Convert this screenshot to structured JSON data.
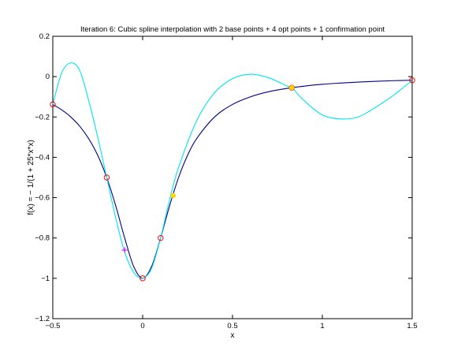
{
  "chart_data": {
    "type": "line",
    "title": "Iteration 6: Cubic spline interpolation with 2 base points + 4 opt points + 1 confirmation point",
    "xlabel": "x",
    "ylabel": "f(x) = − 1/(1 + 25*x*x)",
    "xlim": [
      -0.5,
      1.5
    ],
    "ylim": [
      -1.2,
      0.2
    ],
    "x_ticks": [
      -0.5,
      0,
      0.5,
      1,
      1.5
    ],
    "x_tick_labels": [
      "−0.5",
      "0",
      "0.5",
      "1",
      "1.5"
    ],
    "y_ticks": [
      -1.2,
      -1,
      -0.8,
      -0.6,
      -0.4,
      -0.2,
      0,
      0.2
    ],
    "y_tick_labels": [
      "−1.2",
      "−1",
      "−0.8",
      "−0.6",
      "−0.4",
      "−0.2",
      "0",
      "0.2"
    ],
    "grid": false,
    "legend": "none",
    "series": [
      {
        "role": "true-function",
        "color": "#00008b",
        "x": [
          -0.5,
          -0.45,
          -0.4,
          -0.35,
          -0.3,
          -0.25,
          -0.2,
          -0.15,
          -0.1,
          -0.05,
          0,
          0.05,
          0.1,
          0.15,
          0.2,
          0.25,
          0.3,
          0.4,
          0.5,
          0.6,
          0.7,
          0.8,
          0.9,
          1.0,
          1.1,
          1.2,
          1.3,
          1.4,
          1.5
        ],
        "y": [
          -0.138,
          -0.165,
          -0.2,
          -0.246,
          -0.308,
          -0.39,
          -0.5,
          -0.64,
          -0.8,
          -0.941,
          -1.0,
          -0.941,
          -0.8,
          -0.64,
          -0.5,
          -0.39,
          -0.308,
          -0.2,
          -0.138,
          -0.1,
          -0.075,
          -0.059,
          -0.047,
          -0.038,
          -0.032,
          -0.027,
          -0.023,
          -0.02,
          -0.018
        ]
      },
      {
        "role": "spline-interpolant",
        "color": "#00e5ee",
        "x": [
          -0.5,
          -0.45,
          -0.4,
          -0.35,
          -0.3,
          -0.25,
          -0.2,
          -0.15,
          -0.1,
          -0.05,
          0,
          0.05,
          0.1,
          0.15,
          0.2,
          0.3,
          0.4,
          0.5,
          0.6,
          0.7,
          0.8,
          0.83,
          0.9,
          1.0,
          1.1,
          1.2,
          1.3,
          1.4,
          1.5
        ],
        "y": [
          -0.138,
          0.02,
          0.068,
          0.03,
          -0.12,
          -0.3,
          -0.5,
          -0.7,
          -0.87,
          -0.97,
          -1.0,
          -0.95,
          -0.8,
          -0.61,
          -0.45,
          -0.22,
          -0.08,
          -0.01,
          0.012,
          -0.005,
          -0.045,
          -0.055,
          -0.12,
          -0.19,
          -0.21,
          -0.2,
          -0.15,
          -0.09,
          -0.018
        ]
      }
    ],
    "markers": [
      {
        "kind": "circle",
        "color": "#ff0000",
        "x": -0.5,
        "y": -0.138
      },
      {
        "kind": "circle",
        "color": "#ff0000",
        "x": -0.2,
        "y": -0.5
      },
      {
        "kind": "circle",
        "color": "#ff0000",
        "x": 0,
        "y": -1.0
      },
      {
        "kind": "circle",
        "color": "#ff0000",
        "x": 0.1,
        "y": -0.8
      },
      {
        "kind": "circle",
        "color": "#ff0000",
        "x": 0.83,
        "y": -0.055
      },
      {
        "kind": "circle",
        "color": "#ff0000",
        "x": 1.5,
        "y": -0.018
      },
      {
        "kind": "plus",
        "color": "#ff00ff",
        "x": -0.1,
        "y": -0.86
      },
      {
        "kind": "filled",
        "color": "#ffd700",
        "x": 0.17,
        "y": -0.59
      },
      {
        "kind": "filled",
        "color": "#ffd700",
        "x": 0.83,
        "y": -0.055
      }
    ]
  }
}
